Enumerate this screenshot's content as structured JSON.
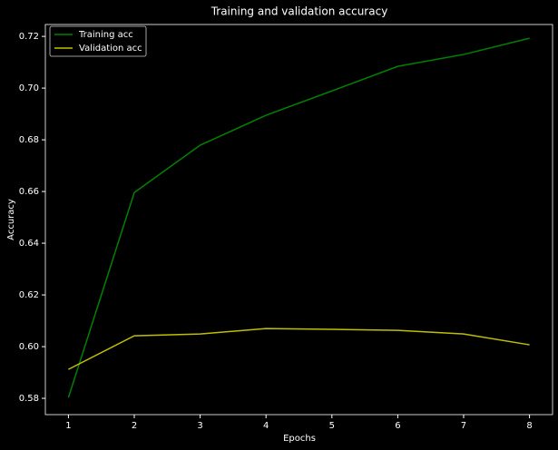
{
  "chart_data": {
    "type": "line",
    "title": "Training and validation accuracy",
    "x_label": "Epochs",
    "y_label": "Accuracy",
    "x": [
      1,
      2,
      3,
      4,
      5,
      6,
      7,
      8
    ],
    "series": [
      {
        "name": "Training acc",
        "color": "#008000",
        "values": [
          0.5803,
          0.6596,
          0.6779,
          0.6895,
          0.6989,
          0.7084,
          0.713,
          0.7193
        ]
      },
      {
        "name": "Validation acc",
        "color": "#bfbf00",
        "values": [
          0.5912,
          0.6042,
          0.6049,
          0.607,
          0.6067,
          0.6063,
          0.6049,
          0.6007
        ]
      }
    ],
    "xlim": [
      0.65,
      8.35
    ],
    "xticks": [
      1,
      2,
      3,
      4,
      5,
      6,
      7,
      8
    ],
    "ylim": [
      0.5737,
      0.7246
    ],
    "yticks": [
      0.58,
      {
        "value": 0.6,
        "label": "0.60"
      },
      0.62,
      0.64,
      0.66,
      0.68,
      {
        "value": 0.7,
        "label": "0.70"
      },
      0.72
    ],
    "legend": "upper left",
    "grid": false
  }
}
